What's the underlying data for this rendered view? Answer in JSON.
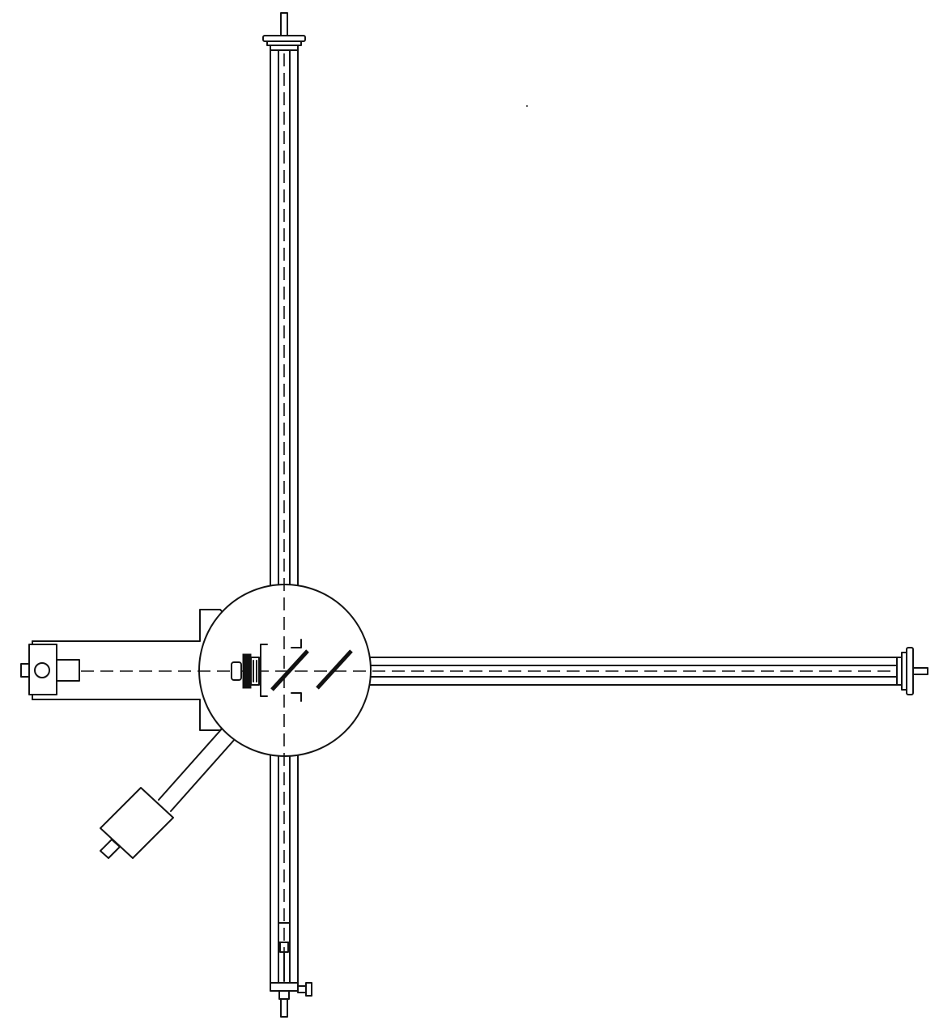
{
  "figure": {
    "kind": "line drawing",
    "ink_color": "#111111",
    "background_color": "#ffffff",
    "parts": [
      "central-chamber",
      "vertical-arm-upper",
      "vertical-arm-lower",
      "horizontal-arm-right",
      "left-housing",
      "diagonal-arm",
      "cylinder-body",
      "beam-path",
      "beam-splitter",
      "compensator-plate",
      "end-mirror-mount-top",
      "end-mirror-mount-right",
      "adjustment-clamp-bottom"
    ]
  }
}
